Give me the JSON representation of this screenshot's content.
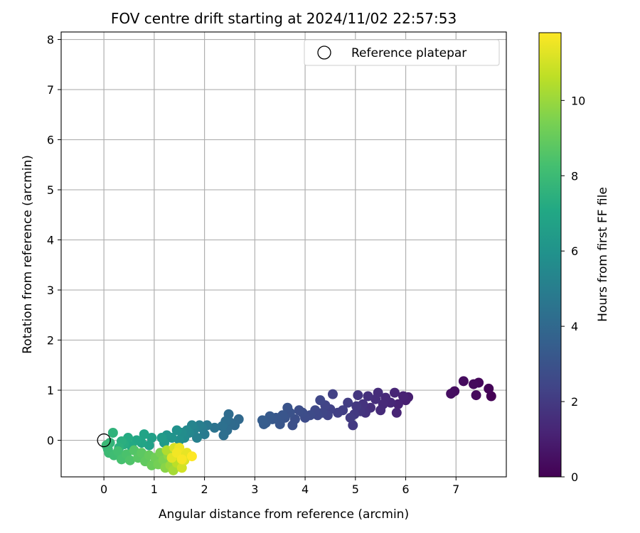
{
  "chart_data": {
    "type": "scatter",
    "title": "FOV centre drift starting at 2024/11/02 22:57:53",
    "xlabel": "Angular distance from reference (arcmin)",
    "ylabel": "Rotation from reference (arcmin)",
    "xlim": [
      -0.85,
      8.0
    ],
    "ylim": [
      -0.73,
      8.15
    ],
    "xticks": [
      0,
      1,
      2,
      3,
      4,
      5,
      6,
      7
    ],
    "yticks": [
      0,
      1,
      2,
      3,
      4,
      5,
      6,
      7,
      8
    ],
    "grid": true,
    "legend": {
      "position": "top-right",
      "entries": [
        "Reference platepar"
      ]
    },
    "reference_point": {
      "x": 0,
      "y": 0,
      "label": "Reference platepar"
    },
    "colorbar": {
      "label": "Hours from first FF file",
      "colormap": "viridis",
      "range": [
        0,
        11.8
      ],
      "ticks": [
        0,
        2,
        4,
        6,
        8,
        10
      ]
    },
    "points": [
      {
        "x": 7.7,
        "y": 0.88,
        "c": 0.0
      },
      {
        "x": 7.65,
        "y": 1.03,
        "c": 0.1
      },
      {
        "x": 7.45,
        "y": 1.15,
        "c": 0.2
      },
      {
        "x": 7.4,
        "y": 0.9,
        "c": 0.25
      },
      {
        "x": 7.35,
        "y": 1.12,
        "c": 0.3
      },
      {
        "x": 7.15,
        "y": 1.18,
        "c": 0.35
      },
      {
        "x": 6.97,
        "y": 0.98,
        "c": 0.4
      },
      {
        "x": 6.9,
        "y": 0.93,
        "c": 0.45
      },
      {
        "x": 6.05,
        "y": 0.86,
        "c": 1.0
      },
      {
        "x": 6.0,
        "y": 0.8,
        "c": 1.05
      },
      {
        "x": 5.95,
        "y": 0.88,
        "c": 1.1
      },
      {
        "x": 5.85,
        "y": 0.72,
        "c": 1.15
      },
      {
        "x": 5.82,
        "y": 0.55,
        "c": 1.2
      },
      {
        "x": 5.78,
        "y": 0.95,
        "c": 1.25
      },
      {
        "x": 5.7,
        "y": 0.75,
        "c": 1.3
      },
      {
        "x": 5.6,
        "y": 0.85,
        "c": 1.35
      },
      {
        "x": 5.55,
        "y": 0.72,
        "c": 1.4
      },
      {
        "x": 5.5,
        "y": 0.6,
        "c": 1.45
      },
      {
        "x": 5.45,
        "y": 0.95,
        "c": 1.5
      },
      {
        "x": 5.4,
        "y": 0.82,
        "c": 1.55
      },
      {
        "x": 5.3,
        "y": 0.65,
        "c": 1.6
      },
      {
        "x": 5.25,
        "y": 0.88,
        "c": 1.65
      },
      {
        "x": 5.2,
        "y": 0.55,
        "c": 1.7
      },
      {
        "x": 5.15,
        "y": 0.72,
        "c": 1.75
      },
      {
        "x": 5.1,
        "y": 0.58,
        "c": 1.8
      },
      {
        "x": 5.05,
        "y": 0.9,
        "c": 1.85
      },
      {
        "x": 5.02,
        "y": 0.68,
        "c": 1.9
      },
      {
        "x": 4.98,
        "y": 0.52,
        "c": 1.95
      },
      {
        "x": 4.95,
        "y": 0.3,
        "c": 2.0
      },
      {
        "x": 4.9,
        "y": 0.45,
        "c": 2.05
      },
      {
        "x": 4.85,
        "y": 0.75,
        "c": 2.1
      },
      {
        "x": 4.75,
        "y": 0.6,
        "c": 2.15
      },
      {
        "x": 4.65,
        "y": 0.55,
        "c": 2.2
      },
      {
        "x": 4.55,
        "y": 0.92,
        "c": 2.25
      },
      {
        "x": 4.5,
        "y": 0.62,
        "c": 2.3
      },
      {
        "x": 4.45,
        "y": 0.5,
        "c": 2.35
      },
      {
        "x": 4.4,
        "y": 0.7,
        "c": 2.4
      },
      {
        "x": 4.35,
        "y": 0.55,
        "c": 2.45
      },
      {
        "x": 4.3,
        "y": 0.8,
        "c": 2.5
      },
      {
        "x": 4.25,
        "y": 0.5,
        "c": 2.55
      },
      {
        "x": 4.2,
        "y": 0.6,
        "c": 2.6
      },
      {
        "x": 4.1,
        "y": 0.5,
        "c": 2.65
      },
      {
        "x": 4.0,
        "y": 0.45,
        "c": 2.7
      },
      {
        "x": 3.95,
        "y": 0.55,
        "c": 2.75
      },
      {
        "x": 3.88,
        "y": 0.6,
        "c": 2.8
      },
      {
        "x": 3.8,
        "y": 0.42,
        "c": 2.85
      },
      {
        "x": 3.75,
        "y": 0.3,
        "c": 2.9
      },
      {
        "x": 3.7,
        "y": 0.55,
        "c": 2.95
      },
      {
        "x": 3.65,
        "y": 0.65,
        "c": 3.0
      },
      {
        "x": 3.6,
        "y": 0.45,
        "c": 3.05
      },
      {
        "x": 3.55,
        "y": 0.5,
        "c": 3.1
      },
      {
        "x": 3.5,
        "y": 0.32,
        "c": 3.15
      },
      {
        "x": 3.42,
        "y": 0.45,
        "c": 3.2
      },
      {
        "x": 3.35,
        "y": 0.42,
        "c": 3.25
      },
      {
        "x": 3.3,
        "y": 0.48,
        "c": 3.3
      },
      {
        "x": 3.22,
        "y": 0.35,
        "c": 3.35
      },
      {
        "x": 3.18,
        "y": 0.32,
        "c": 3.4
      },
      {
        "x": 3.15,
        "y": 0.4,
        "c": 3.45
      },
      {
        "x": 2.68,
        "y": 0.42,
        "c": 4.0
      },
      {
        "x": 2.6,
        "y": 0.3,
        "c": 4.05
      },
      {
        "x": 2.52,
        "y": 0.35,
        "c": 4.1
      },
      {
        "x": 2.48,
        "y": 0.52,
        "c": 4.15
      },
      {
        "x": 2.45,
        "y": 0.2,
        "c": 4.2
      },
      {
        "x": 2.42,
        "y": 0.38,
        "c": 4.25
      },
      {
        "x": 2.38,
        "y": 0.1,
        "c": 4.3
      },
      {
        "x": 2.35,
        "y": 0.28,
        "c": 4.35
      },
      {
        "x": 2.2,
        "y": 0.25,
        "c": 4.5
      },
      {
        "x": 2.05,
        "y": 0.3,
        "c": 4.7
      },
      {
        "x": 2.0,
        "y": 0.12,
        "c": 4.8
      },
      {
        "x": 1.95,
        "y": 0.25,
        "c": 4.9
      },
      {
        "x": 1.9,
        "y": 0.3,
        "c": 5.0
      },
      {
        "x": 1.85,
        "y": 0.05,
        "c": 5.1
      },
      {
        "x": 1.8,
        "y": 0.22,
        "c": 5.2
      },
      {
        "x": 1.75,
        "y": 0.3,
        "c": 5.3
      },
      {
        "x": 1.7,
        "y": 0.15,
        "c": 5.4
      },
      {
        "x": 1.65,
        "y": 0.2,
        "c": 5.5
      },
      {
        "x": 1.6,
        "y": 0.05,
        "c": 5.6
      },
      {
        "x": 1.55,
        "y": 0.15,
        "c": 5.7
      },
      {
        "x": 1.5,
        "y": 0.0,
        "c": 5.8
      },
      {
        "x": 1.45,
        "y": 0.2,
        "c": 5.9
      },
      {
        "x": 1.35,
        "y": 0.05,
        "c": 6.0
      },
      {
        "x": 1.25,
        "y": 0.1,
        "c": 6.1
      },
      {
        "x": 1.2,
        "y": -0.05,
        "c": 6.3
      },
      {
        "x": 1.15,
        "y": 0.05,
        "c": 6.4
      },
      {
        "x": 0.95,
        "y": 0.05,
        "c": 6.6
      },
      {
        "x": 0.9,
        "y": -0.1,
        "c": 6.7
      },
      {
        "x": 0.8,
        "y": 0.12,
        "c": 6.8
      },
      {
        "x": 0.75,
        "y": -0.05,
        "c": 6.9
      },
      {
        "x": 0.65,
        "y": 0.0,
        "c": 7.0
      },
      {
        "x": 0.55,
        "y": -0.12,
        "c": 7.1
      },
      {
        "x": 0.48,
        "y": 0.05,
        "c": 7.2
      },
      {
        "x": 0.4,
        "y": -0.08,
        "c": 7.3
      },
      {
        "x": 0.35,
        "y": -0.02,
        "c": 7.4
      },
      {
        "x": 0.3,
        "y": -0.15,
        "c": 7.5
      },
      {
        "x": 0.18,
        "y": 0.15,
        "c": 7.6
      },
      {
        "x": 0.12,
        "y": -0.05,
        "c": 7.7
      },
      {
        "x": 0.08,
        "y": -0.18,
        "c": 7.8
      },
      {
        "x": 0.05,
        "y": -0.1,
        "c": 7.9
      },
      {
        "x": 0.1,
        "y": -0.25,
        "c": 8.0
      },
      {
        "x": 0.2,
        "y": -0.3,
        "c": 8.1
      },
      {
        "x": 0.28,
        "y": -0.22,
        "c": 8.2
      },
      {
        "x": 0.35,
        "y": -0.38,
        "c": 8.3
      },
      {
        "x": 0.45,
        "y": -0.28,
        "c": 8.4
      },
      {
        "x": 0.52,
        "y": -0.4,
        "c": 8.5
      },
      {
        "x": 0.6,
        "y": -0.2,
        "c": 8.6
      },
      {
        "x": 0.68,
        "y": -0.35,
        "c": 8.7
      },
      {
        "x": 0.75,
        "y": -0.25,
        "c": 8.8
      },
      {
        "x": 0.82,
        "y": -0.42,
        "c": 8.9
      },
      {
        "x": 0.9,
        "y": -0.3,
        "c": 9.0
      },
      {
        "x": 0.95,
        "y": -0.5,
        "c": 9.1
      },
      {
        "x": 1.02,
        "y": -0.35,
        "c": 9.2
      },
      {
        "x": 1.08,
        "y": -0.48,
        "c": 9.3
      },
      {
        "x": 1.12,
        "y": -0.25,
        "c": 9.4
      },
      {
        "x": 1.18,
        "y": -0.4,
        "c": 9.5
      },
      {
        "x": 1.22,
        "y": -0.55,
        "c": 9.7
      },
      {
        "x": 1.28,
        "y": -0.3,
        "c": 9.8
      },
      {
        "x": 1.32,
        "y": -0.5,
        "c": 10.0
      },
      {
        "x": 1.38,
        "y": -0.6,
        "c": 10.2
      },
      {
        "x": 1.25,
        "y": -0.2,
        "c": 10.4
      },
      {
        "x": 1.45,
        "y": -0.45,
        "c": 10.6
      },
      {
        "x": 1.5,
        "y": -0.3,
        "c": 10.8
      },
      {
        "x": 1.55,
        "y": -0.55,
        "c": 11.0
      },
      {
        "x": 1.4,
        "y": -0.15,
        "c": 11.1
      },
      {
        "x": 1.6,
        "y": -0.4,
        "c": 11.2
      },
      {
        "x": 1.35,
        "y": -0.35,
        "c": 11.3
      },
      {
        "x": 1.65,
        "y": -0.25,
        "c": 11.4
      },
      {
        "x": 1.5,
        "y": -0.15,
        "c": 11.5
      },
      {
        "x": 1.45,
        "y": -0.25,
        "c": 11.6
      },
      {
        "x": 1.55,
        "y": -0.38,
        "c": 11.7
      },
      {
        "x": 1.75,
        "y": -0.32,
        "c": 11.8
      }
    ]
  }
}
